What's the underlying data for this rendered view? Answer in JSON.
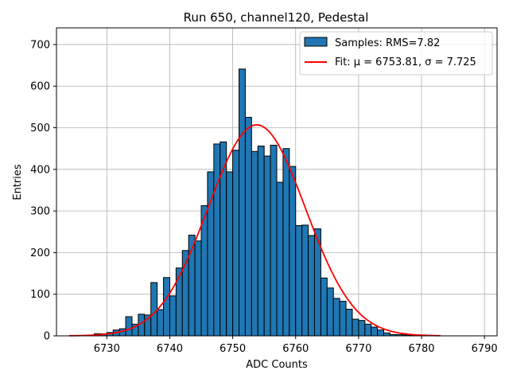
{
  "chart_data": {
    "type": "bar",
    "title": "Run 650, channel120, Pedestal",
    "xlabel": "ADC Counts",
    "ylabel": "Entries",
    "xlim": [
      6722,
      6792
    ],
    "ylim": [
      0,
      740
    ],
    "xticks": [
      "6730",
      "6740",
      "6750",
      "6760",
      "6770",
      "6780",
      "6790"
    ],
    "yticks": [
      "0",
      "100",
      "200",
      "300",
      "400",
      "500",
      "600",
      "700"
    ],
    "grid": true,
    "legend_position": "top-right",
    "bin_width": 1,
    "colors": {
      "bars": "#1f77b4",
      "bar_edge": "#000000",
      "fit": "#ff0000",
      "grid": "#b0b0b0"
    },
    "series": [
      {
        "name": "Samples: RMS=7.82",
        "type": "bar",
        "bin_edges_start": 6728,
        "values": [
          5,
          5,
          8,
          14,
          17,
          46,
          28,
          52,
          50,
          128,
          63,
          140,
          96,
          163,
          205,
          242,
          228,
          313,
          394,
          461,
          466,
          394,
          446,
          641,
          525,
          443,
          456,
          432,
          458,
          369,
          450,
          407,
          265,
          266,
          241,
          257,
          139,
          115,
          90,
          83,
          64,
          40,
          37,
          28,
          21,
          14,
          7,
          3,
          3,
          2,
          2
        ]
      },
      {
        "name": "Fit: μ = 6753.81, σ = 7.725",
        "type": "line",
        "mu": 6753.81,
        "sigma": 7.725,
        "amplitude": 507,
        "x_range": [
          6724,
          6783
        ]
      }
    ]
  }
}
